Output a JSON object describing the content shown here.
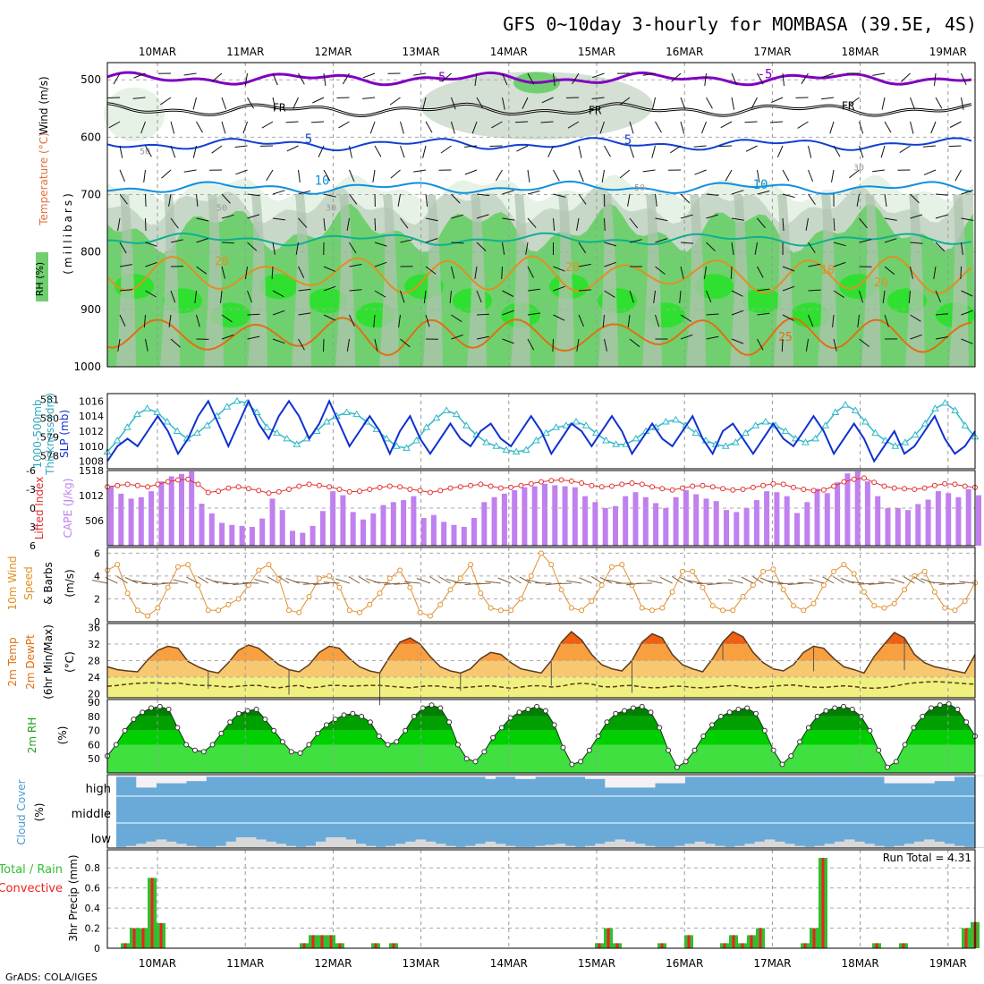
{
  "title": "GFS 0~10day 3-hourly for MOMBASA (39.5E, 4S)",
  "credit": "GrADS: COLA/IGES",
  "days": [
    "10MAR",
    "11MAR",
    "12MAR",
    "13MAR",
    "14MAR",
    "15MAR",
    "16MAR",
    "17MAR",
    "18MAR",
    "19MAR"
  ],
  "colors": {
    "purple": "#8000c0",
    "black": "#000000",
    "blue": "#1040d0",
    "sky": "#1090e0",
    "teal": "#10b090",
    "orange": "#e09020",
    "darkorange": "#e07010",
    "magenta": "#d01070",
    "rh_light": "#e6f2e6",
    "rh_mid": "#c8d8c8",
    "rh_grey": "#b0c4b0",
    "rh_green": "#70d070",
    "rh_bright": "#30e030",
    "thick": "#30b8c8",
    "slp": "#1030d0",
    "li": "#e03030",
    "cape": "#c080f0",
    "wind": "#e09030",
    "barb": "#806040",
    "t_hot": "#f06010",
    "t_warm": "#f8a040",
    "t_mild": "#f8c870",
    "t_cool": "#f0f080",
    "rh_dark": "#008000",
    "rh_bright2": "#00d000",
    "cloud_blue": "#6aaad8",
    "cloud_white": "#f5f0f5",
    "cloud_grey": "#d8d8d8",
    "precip_green": "#30c030",
    "precip_red": "#f02020"
  },
  "panels": {
    "upper": {
      "ylabel_wind": "Wind (m/s)",
      "ylabel_temp": "Temperature (°C)",
      "ylabel_rh": "RH (%)",
      "ylabel_units": "(millibars)",
      "levels": [
        "500",
        "600",
        "700",
        "800",
        "900",
        "1000"
      ],
      "contour_labels": [
        "-5",
        "-5",
        "FR",
        "FR",
        "FR",
        "-5",
        "5",
        "5",
        "10",
        "10",
        "20",
        "20",
        "10",
        "20",
        "25",
        "50",
        "50",
        "30",
        "30",
        "50"
      ]
    },
    "thickness": {
      "ylabel_left": "1000-500mb",
      "ylabel_left2": "Thickness (dm)",
      "ylabel_right": "SLP (mb)",
      "ticks_left": [
        "581",
        "580",
        "579",
        "578"
      ],
      "ticks_right": [
        "1016",
        "1014",
        "1012",
        "1010",
        "1008"
      ]
    },
    "cape": {
      "ylabel_left": "Lifted Index",
      "ylabel_right": "CAPE (J/kg)",
      "ticks_left": [
        "-6",
        "-3",
        "0",
        "3",
        "6"
      ],
      "ticks_right": [
        "1518",
        "1012",
        "506"
      ]
    },
    "wind10": {
      "ylabel1": "10m Wind",
      "ylabel2": "Speed",
      "ylabel3": "& Barbs",
      "unit": "(m/s)",
      "ticks": [
        "6",
        "4",
        "2",
        "0"
      ]
    },
    "temp2m": {
      "ylabel1": "2m Temp",
      "ylabel2": "2m DewPt",
      "ylabel3": "(6hr Min/Max)",
      "unit": "(°C)",
      "ticks": [
        "36",
        "32",
        "28",
        "24",
        "20"
      ]
    },
    "rh2m": {
      "ylabel": "2m RH",
      "unit": "(%)",
      "ticks": [
        "90",
        "80",
        "70",
        "60",
        "50"
      ]
    },
    "cloud": {
      "ylabel": "Cloud Cover",
      "unit": "(%)",
      "levels": [
        "high",
        "middle",
        "low"
      ]
    },
    "precip": {
      "ylabel1": "Total / Rain",
      "ylabel2": "Convective",
      "ylabel3": "3hr Precip (mm)",
      "run_total": "Run Total = 4.31",
      "ticks": [
        "0.8",
        "0.6",
        "0.4",
        "0.2",
        "0"
      ]
    }
  },
  "chart_data": {
    "type": "meteogram",
    "x_unit": "3-hourly steps",
    "thickness_dm": [
      578.2,
      578.8,
      579.5,
      580.2,
      580.5,
      580.3,
      579.8,
      579.3,
      578.9,
      579.2,
      579.6,
      580.1,
      580.6,
      580.9,
      580.8,
      580.3,
      579.5,
      579.2,
      578.9,
      578.6,
      578.9,
      579.3,
      579.8,
      580.1,
      580.3,
      580.2,
      579.8,
      579.4,
      578.9,
      578.5,
      578.4,
      578.8,
      579.5,
      580.0,
      580.4,
      580.2,
      579.6,
      579.1,
      578.7,
      578.5,
      578.3,
      578.2,
      578.3,
      578.8,
      579.2,
      579.5,
      579.6,
      579.8,
      579.6,
      579.2,
      578.8,
      578.6,
      578.6,
      578.9,
      579.3,
      579.5,
      579.8,
      579.9,
      579.6,
      579.2,
      578.8,
      578.6,
      578.5,
      578.7,
      579.2,
      579.6,
      579.8,
      579.6,
      579.3,
      578.9,
      578.7,
      578.9,
      579.6,
      580.3,
      580.7,
      580.4,
      579.8,
      579.2,
      578.8,
      578.5,
      578.7,
      579.1,
      579.7,
      580.5,
      580.8,
      580.4,
      579.6,
      579.0
    ],
    "slp_mb": [
      1008,
      1010,
      1011,
      1010,
      1012,
      1014,
      1012,
      1009,
      1011,
      1014,
      1016,
      1013,
      1010,
      1013,
      1016,
      1013,
      1011,
      1014,
      1016,
      1014,
      1011,
      1013,
      1016,
      1013,
      1010,
      1012,
      1014,
      1012,
      1009,
      1012,
      1014,
      1011,
      1009,
      1011,
      1013,
      1011,
      1010,
      1012,
      1013,
      1011,
      1010,
      1012,
      1014,
      1012,
      1009,
      1011,
      1013,
      1012,
      1010,
      1012,
      1014,
      1012,
      1009,
      1011,
      1013,
      1011,
      1010,
      1012,
      1014,
      1011,
      1009,
      1012,
      1013,
      1011,
      1009,
      1011,
      1013,
      1011,
      1010,
      1012,
      1014,
      1012,
      1009,
      1011,
      1013,
      1011,
      1008,
      1010,
      1012,
      1009,
      1010,
      1012,
      1014,
      1011,
      1009,
      1010,
      1012
    ],
    "lifted_index": [
      -3.4,
      -3.6,
      -3.8,
      -3.6,
      -3.4,
      -3.8,
      -4.2,
      -4.5,
      -4.6,
      -3.8,
      -2.5,
      -2.7,
      -3.2,
      -3.4,
      -3.1,
      -2.8,
      -2.4,
      -2.6,
      -3.0,
      -3.5,
      -3.8,
      -3.6,
      -3.4,
      -3.0,
      -2.6,
      -2.7,
      -3.0,
      -3.3,
      -3.5,
      -3.4,
      -3.0,
      -2.8,
      -2.5,
      -2.8,
      -3.2,
      -3.4,
      -3.6,
      -3.8,
      -3.5,
      -3.2,
      -3.3,
      -3.6,
      -3.9,
      -4.2,
      -4.4,
      -4.5,
      -4.3,
      -4.0,
      -3.6,
      -3.4,
      -3.5,
      -3.8,
      -4.0,
      -3.8,
      -3.4,
      -3.1,
      -2.9,
      -3.2,
      -3.5,
      -3.6,
      -3.4,
      -3.1,
      -2.9,
      -3.0,
      -3.3,
      -3.6,
      -3.9,
      -3.8,
      -3.3,
      -3.0,
      -2.8,
      -2.9,
      -3.5,
      -4.2,
      -4.6,
      -4.8,
      -4.1,
      -3.5,
      -3.2,
      -3.1,
      -3.0,
      -3.2,
      -3.6,
      -3.9,
      -3.8,
      -3.5,
      -3.3
    ],
    "cape_jkg": [
      1200,
      1050,
      950,
      980,
      1100,
      1300,
      1400,
      1450,
      1500,
      850,
      650,
      460,
      420,
      400,
      380,
      550,
      950,
      720,
      300,
      260,
      400,
      700,
      1100,
      1020,
      680,
      530,
      650,
      820,
      880,
      920,
      1000,
      560,
      620,
      480,
      420,
      380,
      560,
      880,
      980,
      1050,
      1120,
      1180,
      1200,
      1250,
      1220,
      1200,
      1180,
      1000,
      880,
      760,
      800,
      1000,
      1080,
      980,
      860,
      760,
      980,
      1120,
      1040,
      950,
      900,
      720,
      680,
      760,
      920,
      1100,
      1080,
      1000,
      660,
      880,
      1150,
      1060,
      1280,
      1460,
      1500,
      1300,
      1000,
      760,
      760,
      720,
      840,
      930,
      1100,
      1060,
      980,
      1140,
      1020
    ],
    "wind10_ms": [
      4.5,
      5.0,
      2.5,
      1.0,
      0.5,
      1.2,
      3.0,
      4.8,
      5.0,
      3.2,
      1.0,
      1.0,
      1.5,
      2.0,
      3.2,
      4.5,
      5.0,
      3.8,
      1.0,
      0.8,
      2.2,
      3.8,
      4.0,
      3.0,
      1.0,
      0.8,
      1.5,
      2.5,
      3.8,
      4.5,
      3.0,
      0.8,
      0.5,
      1.5,
      2.8,
      3.8,
      5.0,
      2.5,
      1.2,
      1.0,
      1.0,
      2.0,
      4.0,
      6.0,
      5.0,
      2.8,
      1.2,
      1.0,
      1.8,
      3.2,
      4.8,
      5.0,
      3.2,
      1.2,
      1.0,
      1.2,
      2.6,
      4.4,
      4.4,
      3.0,
      1.4,
      1.0,
      1.0,
      2.2,
      3.2,
      4.4,
      4.6,
      2.8,
      1.4,
      1.0,
      1.6,
      3.2,
      4.4,
      5.0,
      4.2,
      2.6,
      1.4,
      1.2,
      1.6,
      2.8,
      4.0,
      4.4,
      2.6,
      1.2,
      1.0,
      1.8,
      3.4
    ],
    "temp2m_c": [
      26.5,
      25.8,
      25.5,
      25.3,
      28.2,
      30.5,
      31.5,
      31.0,
      27.8,
      26.5,
      25.5,
      25.0,
      27.5,
      30.5,
      31.8,
      31.0,
      29.0,
      27.0,
      25.8,
      25.3,
      27.0,
      30.0,
      31.5,
      31.0,
      28.5,
      26.5,
      25.5,
      25.0,
      29.0,
      32.5,
      33.5,
      32.0,
      29.0,
      26.5,
      25.5,
      25.0,
      26.0,
      28.5,
      30.0,
      29.5,
      27.5,
      26.0,
      25.5,
      25.0,
      28.0,
      32.5,
      35.0,
      33.0,
      29.5,
      27.0,
      26.0,
      25.5,
      28.0,
      32.5,
      34.5,
      33.5,
      29.5,
      27.0,
      26.0,
      25.3,
      28.5,
      32.5,
      35.0,
      33.8,
      30.0,
      27.5,
      26.0,
      25.5,
      27.0,
      30.0,
      31.5,
      31.0,
      28.5,
      26.5,
      25.8,
      25.0,
      29.0,
      32.0,
      34.8,
      33.5,
      29.5,
      27.5,
      26.5,
      26.0,
      25.5,
      25.0,
      29.5
    ],
    "dewpt2m_c": [
      21.8,
      22.0,
      22.3,
      22.5,
      22.6,
      22.6,
      22.4,
      22.6,
      22.2,
      22.0,
      22.0,
      21.8,
      21.6,
      21.8,
      22.0,
      22.0,
      21.6,
      21.4,
      21.8,
      22.0,
      21.4,
      21.6,
      22.0,
      22.0,
      21.8,
      21.9,
      22.0,
      22.0,
      21.8,
      21.6,
      21.4,
      21.7,
      21.9,
      21.8,
      21.5,
      21.4,
      21.6,
      21.8,
      21.9,
      21.6,
      21.3,
      21.6,
      21.9,
      21.9,
      21.6,
      21.8,
      22.3,
      22.5,
      22.3,
      21.7,
      21.6,
      21.9,
      22.0,
      21.6,
      21.4,
      21.5,
      21.8,
      21.8,
      21.5,
      21.4,
      21.6,
      21.8,
      22.0,
      21.6,
      21.4,
      21.6,
      21.8,
      22.0,
      22.1,
      21.8,
      21.6,
      21.5,
      21.7,
      21.9,
      21.7,
      21.4,
      21.3,
      21.5,
      21.8,
      22.3,
      22.6,
      22.8,
      22.9,
      22.8,
      22.6,
      22.4,
      22.3
    ],
    "rh2m_pct": [
      52,
      60,
      70,
      78,
      83,
      86,
      87,
      85,
      72,
      60,
      56,
      55,
      60,
      68,
      76,
      82,
      84,
      85,
      78,
      70,
      62,
      55,
      54,
      60,
      68,
      74,
      78,
      81,
      82,
      80,
      76,
      66,
      60,
      62,
      70,
      80,
      86,
      88,
      86,
      76,
      60,
      50,
      48,
      55,
      65,
      72,
      79,
      83,
      85,
      87,
      84,
      74,
      58,
      46,
      48,
      56,
      66,
      76,
      82,
      84,
      86,
      87,
      83,
      72,
      56,
      44,
      48,
      56,
      66,
      74,
      80,
      83,
      85,
      86,
      82,
      70,
      56,
      46,
      52,
      62,
      72,
      80,
      84,
      86,
      87,
      85,
      80,
      70,
      56,
      44,
      48,
      60,
      72,
      80,
      86,
      88,
      89,
      85,
      76,
      66
    ],
    "cloud_high_pct": [
      10,
      10,
      60,
      60,
      40,
      40,
      40,
      30,
      30,
      10,
      10,
      10,
      10,
      10,
      10,
      10,
      10,
      10,
      10,
      10,
      10,
      10,
      10,
      10,
      10,
      10,
      10,
      10,
      10,
      10,
      10,
      10,
      10,
      10,
      10,
      10,
      10,
      20,
      10,
      10,
      20,
      20,
      10,
      10,
      10,
      10,
      10,
      20,
      20,
      60,
      60,
      60,
      60,
      60,
      40,
      40,
      40,
      10,
      10,
      10,
      10,
      10,
      10,
      10,
      10,
      10,
      10,
      10,
      10,
      10,
      10,
      10,
      10,
      10,
      10,
      10,
      10,
      40,
      40,
      40,
      40,
      40,
      30,
      30,
      10,
      10,
      10
    ],
    "cloud_low_pct": [
      5,
      10,
      20,
      30,
      40,
      30,
      20,
      10,
      5,
      5,
      10,
      30,
      50,
      50,
      40,
      30,
      20,
      10,
      5,
      10,
      30,
      50,
      50,
      40,
      20,
      10,
      5,
      10,
      20,
      30,
      40,
      30,
      20,
      10,
      5,
      10,
      20,
      30,
      20,
      10,
      5,
      5,
      10,
      15,
      20,
      10,
      5,
      10,
      20,
      30,
      40,
      30,
      20,
      10,
      5,
      5,
      10,
      20,
      30,
      20,
      10,
      5,
      10,
      20,
      30,
      40,
      30,
      20,
      10,
      5,
      10,
      20,
      30,
      40,
      30,
      20,
      10,
      5,
      10,
      20,
      30,
      40,
      30,
      20,
      10,
      5,
      5
    ],
    "precip_total_mm": [
      0,
      0,
      0.05,
      0.2,
      0.2,
      0.7,
      0.25,
      0,
      0,
      0,
      0,
      0,
      0,
      0,
      0,
      0,
      0,
      0,
      0,
      0,
      0,
      0,
      0.05,
      0.13,
      0.13,
      0.13,
      0.05,
      0,
      0,
      0,
      0.05,
      0,
      0.05,
      0,
      0,
      0,
      0,
      0,
      0,
      0,
      0,
      0,
      0,
      0,
      0,
      0,
      0,
      0,
      0,
      0,
      0,
      0,
      0,
      0,
      0,
      0.05,
      0.2,
      0.05,
      0,
      0,
      0,
      0,
      0.05,
      0,
      0,
      0.13,
      0,
      0,
      0,
      0.05,
      0.13,
      0.05,
      0.13,
      0.2,
      0,
      0,
      0,
      0,
      0.05,
      0.2,
      0.9,
      0,
      0,
      0,
      0,
      0,
      0.05,
      0,
      0,
      0.05,
      0,
      0,
      0,
      0,
      0,
      0,
      0.2,
      0.26
    ],
    "precip_conv_mm": [
      0,
      0,
      0.05,
      0.2,
      0.2,
      0.7,
      0.25,
      0,
      0,
      0,
      0,
      0,
      0,
      0,
      0,
      0,
      0,
      0,
      0,
      0,
      0,
      0,
      0.05,
      0.13,
      0.13,
      0.13,
      0.05,
      0,
      0,
      0,
      0.05,
      0,
      0.05,
      0,
      0,
      0,
      0,
      0,
      0,
      0,
      0,
      0,
      0,
      0,
      0,
      0,
      0,
      0,
      0,
      0,
      0,
      0,
      0,
      0,
      0,
      0.05,
      0.2,
      0.05,
      0,
      0,
      0,
      0,
      0.05,
      0,
      0,
      0.13,
      0,
      0,
      0,
      0.05,
      0.13,
      0.05,
      0.13,
      0.2,
      0,
      0,
      0,
      0,
      0.05,
      0.2,
      0.9,
      0,
      0,
      0,
      0,
      0,
      0.05,
      0,
      0,
      0.05,
      0,
      0,
      0,
      0,
      0,
      0,
      0.2,
      0.26
    ],
    "upper_isotherm_levels_mb": {
      "m5": 498,
      "FR": 552,
      "p5": 612,
      "p10": 688,
      "p15": 778,
      "p20": 840,
      "p25": 945
    },
    "y_ranges": {
      "upper_mb": [
        470,
        1000
      ],
      "thickness_dm": [
        577.3,
        581.3
      ],
      "slp_mb": [
        1007,
        1017
      ],
      "lifted_index": [
        -6,
        6
      ],
      "cape": [
        0,
        1518
      ],
      "wind10": [
        0,
        6.5
      ],
      "temp2m": [
        19,
        37
      ],
      "rh2m": [
        40,
        92
      ],
      "precip": [
        0,
        0.98
      ]
    }
  }
}
